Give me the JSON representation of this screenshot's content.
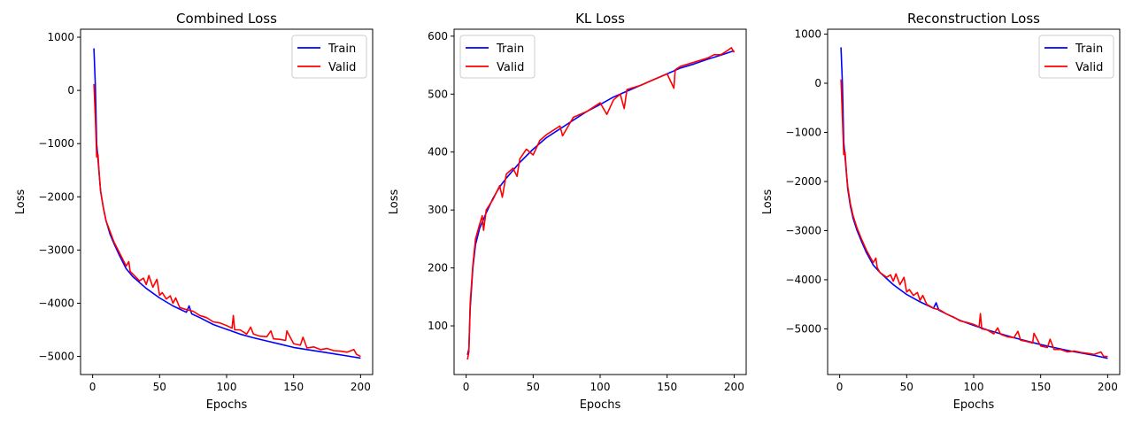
{
  "colors": {
    "train": "#0000ff",
    "valid": "#ff0000",
    "frame": "#000000",
    "legend_border": "#cccccc"
  },
  "chart_data": [
    {
      "type": "line",
      "title": "Combined Loss",
      "xlabel": "Epochs",
      "ylabel": "Loss",
      "xlim": [
        -9,
        209
      ],
      "ylim": [
        -5340,
        1150
      ],
      "xticks": [
        0,
        50,
        100,
        150,
        200
      ],
      "yticks": [
        -5000,
        -4000,
        -3000,
        -2000,
        -1000,
        0,
        1000
      ],
      "legend": {
        "position": "top-right",
        "entries": [
          "Train",
          "Valid"
        ]
      },
      "grid": false,
      "series": [
        {
          "name": "Train",
          "color": "#0000ff",
          "x": [
            1,
            2,
            3,
            4,
            6,
            8,
            10,
            13,
            16,
            20,
            25,
            30,
            40,
            50,
            60,
            70,
            72,
            74,
            80,
            90,
            100,
            110,
            120,
            130,
            140,
            150,
            160,
            170,
            180,
            190,
            200
          ],
          "y": [
            790,
            100,
            -1000,
            -1300,
            -1900,
            -2200,
            -2450,
            -2700,
            -2880,
            -3100,
            -3350,
            -3500,
            -3720,
            -3900,
            -4050,
            -4170,
            -4050,
            -4200,
            -4270,
            -4400,
            -4490,
            -4580,
            -4650,
            -4710,
            -4770,
            -4830,
            -4870,
            -4910,
            -4950,
            -4990,
            -5030
          ]
        },
        {
          "name": "Valid",
          "color": "#ff0000",
          "x": [
            1,
            2,
            3,
            4,
            5,
            6,
            8,
            10,
            13,
            16,
            20,
            25,
            27,
            28,
            30,
            35,
            38,
            40,
            42,
            45,
            48,
            50,
            52,
            55,
            58,
            60,
            62,
            65,
            70,
            75,
            80,
            85,
            90,
            95,
            100,
            104,
            105,
            106,
            110,
            115,
            118,
            120,
            125,
            130,
            133,
            135,
            140,
            144,
            145,
            150,
            155,
            157,
            160,
            165,
            170,
            175,
            180,
            185,
            190,
            195,
            197,
            200
          ],
          "y": [
            120,
            -500,
            -1250,
            -1200,
            -1600,
            -1900,
            -2200,
            -2450,
            -2650,
            -2850,
            -3050,
            -3300,
            -3220,
            -3400,
            -3450,
            -3580,
            -3530,
            -3650,
            -3480,
            -3700,
            -3550,
            -3850,
            -3800,
            -3920,
            -3860,
            -4000,
            -3900,
            -4080,
            -4120,
            -4150,
            -4230,
            -4270,
            -4350,
            -4370,
            -4420,
            -4470,
            -4230,
            -4500,
            -4500,
            -4580,
            -4450,
            -4580,
            -4620,
            -4630,
            -4520,
            -4670,
            -4680,
            -4700,
            -4520,
            -4760,
            -4790,
            -4640,
            -4840,
            -4820,
            -4870,
            -4850,
            -4890,
            -4900,
            -4920,
            -4870,
            -4960,
            -5000
          ]
        }
      ]
    },
    {
      "type": "line",
      "title": "KL Loss",
      "xlabel": "Epochs",
      "ylabel": "Loss",
      "xlim": [
        -9,
        209
      ],
      "ylim": [
        16,
        612
      ],
      "xticks": [
        0,
        50,
        100,
        150,
        200
      ],
      "yticks": [
        100,
        200,
        300,
        400,
        500,
        600
      ],
      "legend": {
        "position": "top-left",
        "entries": [
          "Train",
          "Valid"
        ]
      },
      "grid": false,
      "series": [
        {
          "name": "Train",
          "color": "#0000ff",
          "x": [
            1,
            2,
            3,
            5,
            7,
            10,
            15,
            20,
            25,
            30,
            40,
            50,
            60,
            70,
            80,
            90,
            100,
            110,
            120,
            130,
            140,
            150,
            160,
            170,
            180,
            190,
            200
          ],
          "y": [
            50,
            60,
            130,
            200,
            240,
            268,
            295,
            320,
            340,
            355,
            382,
            405,
            425,
            440,
            455,
            470,
            482,
            495,
            505,
            515,
            525,
            535,
            545,
            552,
            560,
            567,
            575
          ]
        },
        {
          "name": "Valid",
          "color": "#ff0000",
          "x": [
            1,
            2,
            3,
            5,
            7,
            10,
            12,
            13,
            15,
            20,
            25,
            27,
            30,
            35,
            38,
            40,
            45,
            50,
            55,
            60,
            70,
            72,
            80,
            90,
            100,
            105,
            110,
            115,
            118,
            120,
            130,
            140,
            150,
            155,
            156,
            160,
            170,
            180,
            185,
            190,
            195,
            198,
            200
          ],
          "y": [
            42,
            55,
            140,
            205,
            250,
            275,
            290,
            265,
            300,
            318,
            342,
            322,
            362,
            372,
            358,
            388,
            405,
            395,
            420,
            430,
            445,
            428,
            460,
            470,
            485,
            465,
            490,
            500,
            475,
            508,
            515,
            525,
            535,
            510,
            542,
            548,
            555,
            562,
            568,
            568,
            575,
            580,
            572
          ]
        }
      ]
    },
    {
      "type": "line",
      "title": "Reconstruction Loss",
      "xlabel": "Epochs",
      "ylabel": "Loss",
      "xlim": [
        -9,
        209
      ],
      "ylim": [
        -5930,
        1100
      ],
      "xticks": [
        0,
        50,
        100,
        150,
        200
      ],
      "yticks": [
        -5000,
        -4000,
        -3000,
        -2000,
        -1000,
        0,
        1000
      ],
      "legend": {
        "position": "top-right",
        "entries": [
          "Train",
          "Valid"
        ]
      },
      "grid": false,
      "series": [
        {
          "name": "Train",
          "color": "#0000ff",
          "x": [
            1,
            2,
            3,
            4,
            6,
            8,
            10,
            13,
            16,
            20,
            25,
            30,
            40,
            50,
            60,
            70,
            72,
            74,
            80,
            90,
            100,
            110,
            120,
            130,
            140,
            150,
            160,
            170,
            180,
            190,
            200
          ],
          "y": [
            730,
            0,
            -1200,
            -1500,
            -2150,
            -2500,
            -2750,
            -3000,
            -3200,
            -3450,
            -3700,
            -3850,
            -4100,
            -4300,
            -4450,
            -4580,
            -4470,
            -4620,
            -4700,
            -4830,
            -4930,
            -5020,
            -5100,
            -5180,
            -5250,
            -5320,
            -5380,
            -5440,
            -5490,
            -5540,
            -5600
          ]
        },
        {
          "name": "Valid",
          "color": "#ff0000",
          "x": [
            1,
            2,
            3,
            4,
            5,
            6,
            8,
            10,
            13,
            16,
            20,
            25,
            27,
            28,
            30,
            35,
            38,
            40,
            42,
            45,
            48,
            50,
            52,
            55,
            58,
            60,
            62,
            65,
            70,
            75,
            80,
            85,
            90,
            95,
            100,
            104,
            105,
            106,
            110,
            115,
            118,
            120,
            125,
            130,
            133,
            135,
            140,
            144,
            145,
            150,
            155,
            157,
            160,
            165,
            170,
            175,
            180,
            185,
            190,
            195,
            197,
            200
          ],
          "y": [
            80,
            -700,
            -1450,
            -1400,
            -1800,
            -2100,
            -2450,
            -2700,
            -2950,
            -3150,
            -3400,
            -3650,
            -3560,
            -3750,
            -3850,
            -3950,
            -3900,
            -4030,
            -3880,
            -4100,
            -3950,
            -4250,
            -4200,
            -4320,
            -4260,
            -4420,
            -4320,
            -4500,
            -4580,
            -4620,
            -4700,
            -4760,
            -4840,
            -4870,
            -4910,
            -4960,
            -4690,
            -5000,
            -5020,
            -5100,
            -4980,
            -5110,
            -5160,
            -5180,
            -5050,
            -5230,
            -5260,
            -5290,
            -5090,
            -5350,
            -5380,
            -5210,
            -5420,
            -5420,
            -5470,
            -5450,
            -5480,
            -5500,
            -5520,
            -5470,
            -5560,
            -5560
          ]
        }
      ]
    }
  ]
}
